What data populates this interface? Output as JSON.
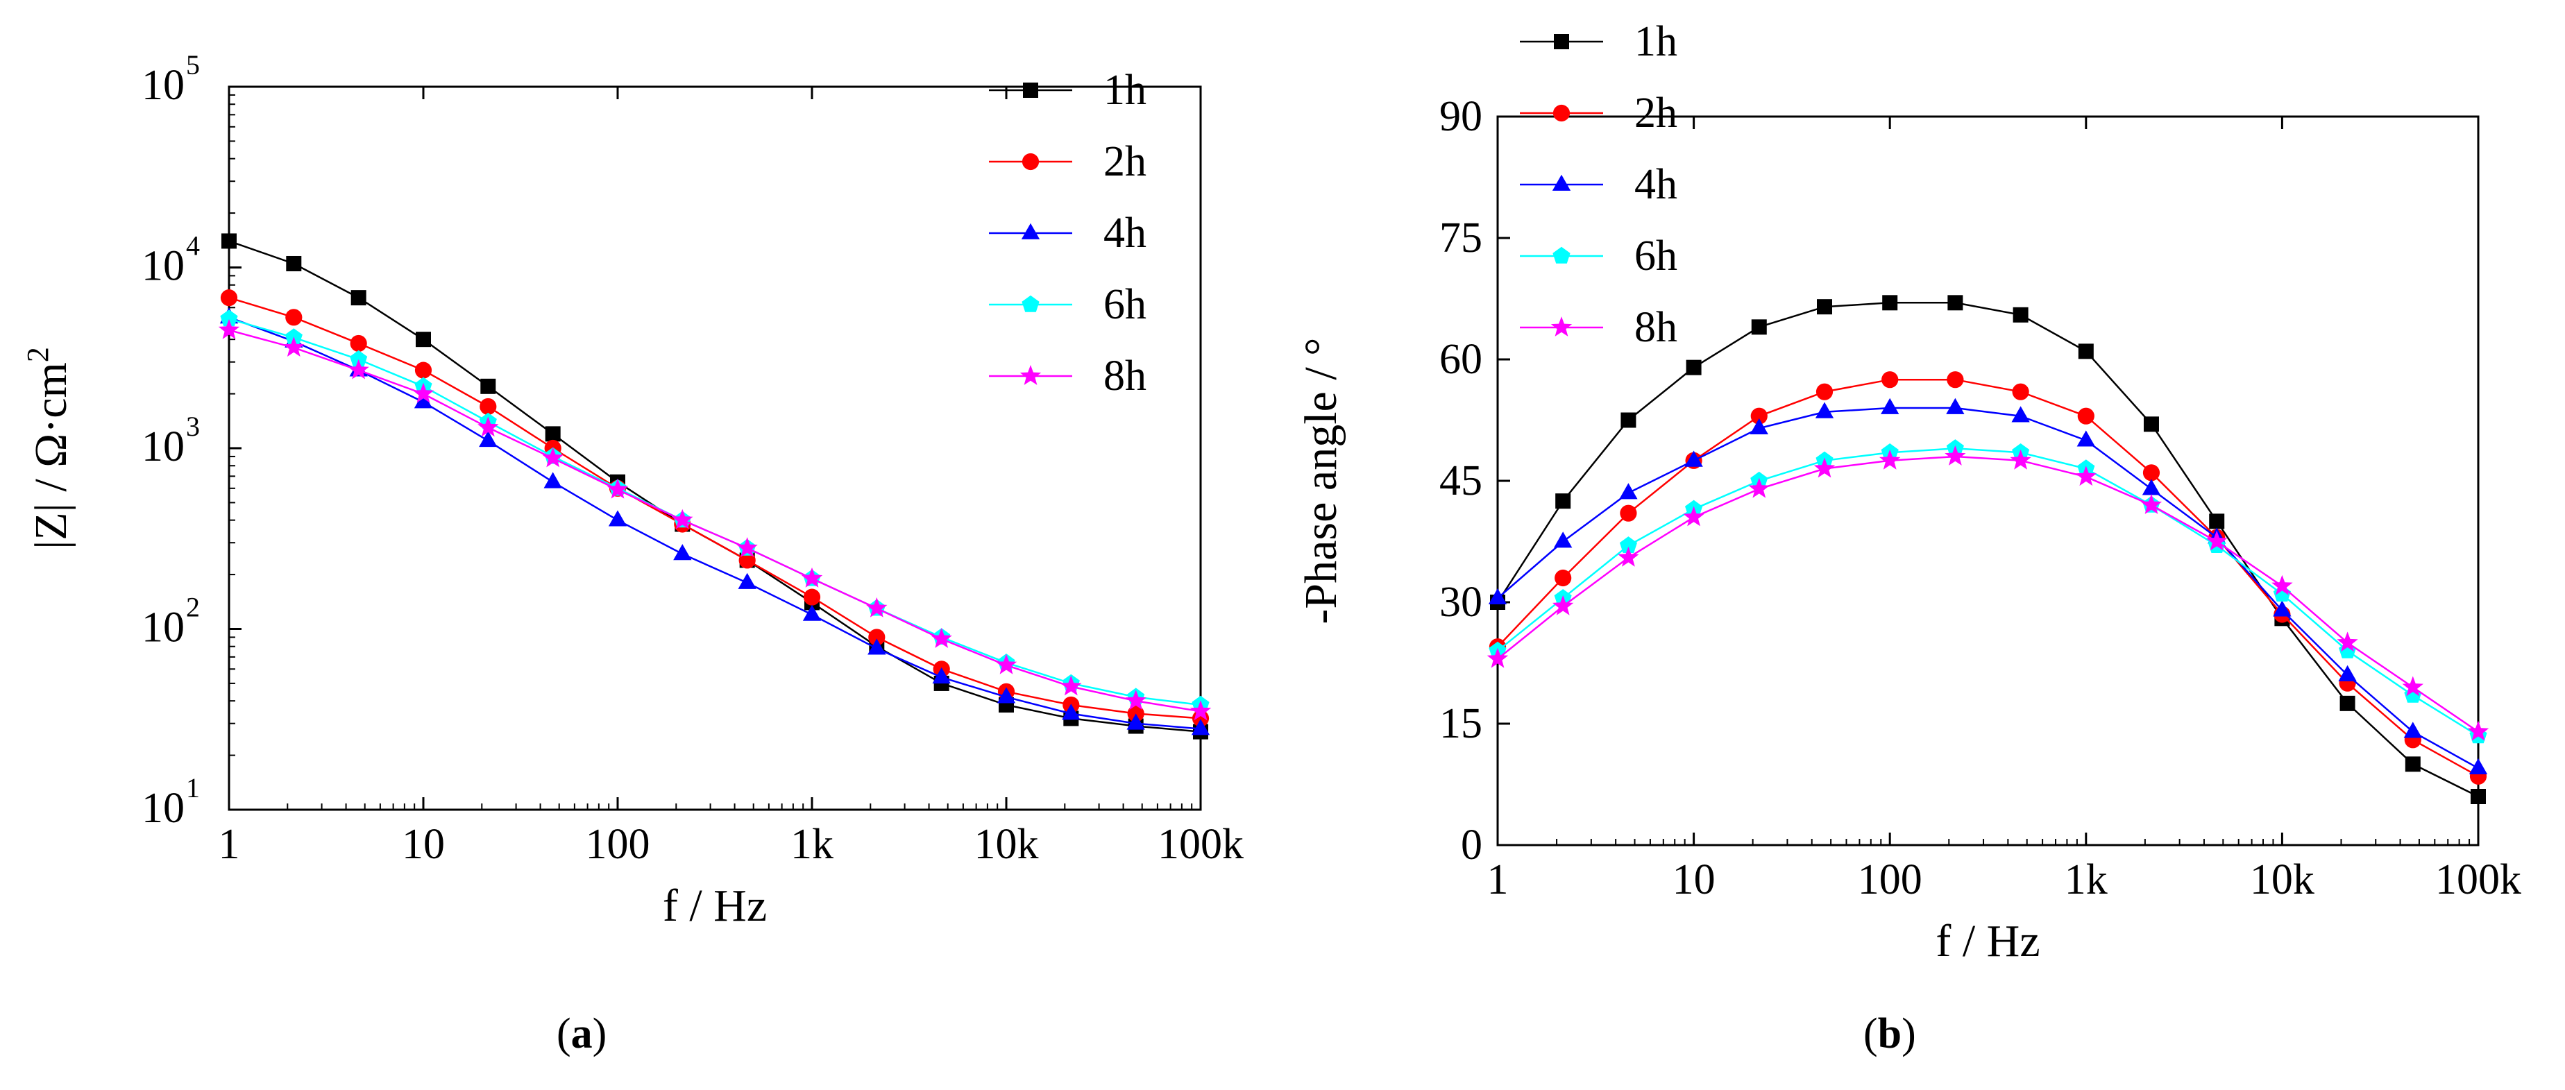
{
  "captions": {
    "a": "a",
    "b": "b"
  },
  "series_style": [
    {
      "name": "1h",
      "color": "#000000",
      "marker": "square"
    },
    {
      "name": "2h",
      "color": "#ff0000",
      "marker": "circle"
    },
    {
      "name": "4h",
      "color": "#0000ff",
      "marker": "triangle"
    },
    {
      "name": "6h",
      "color": "#00ffff",
      "marker": "pentagon"
    },
    {
      "name": "8h",
      "color": "#ff00ff",
      "marker": "star"
    }
  ],
  "chart_data": [
    {
      "type": "line",
      "panel": "a",
      "xlabel": "f / Hz",
      "ylabel_parts": [
        "|Z| / Ω·cm",
        "2"
      ],
      "x_scale": "log",
      "y_scale": "log",
      "xlim": [
        1,
        100000
      ],
      "ylim": [
        10,
        100000
      ],
      "x_ticks": [
        1,
        10,
        100,
        1000,
        10000,
        100000
      ],
      "x_tick_labels": [
        "1",
        "10",
        "100",
        "1k",
        "10k",
        "100k"
      ],
      "y_ticks": [
        10,
        100,
        1000,
        10000,
        100000
      ],
      "y_tick_labels": [
        [
          "10",
          "1"
        ],
        [
          "10",
          "2"
        ],
        [
          "10",
          "3"
        ],
        [
          "10",
          "4"
        ],
        [
          "10",
          "5"
        ]
      ],
      "legend_position": "top-right",
      "x": [
        1,
        2.154,
        4.642,
        10,
        21.54,
        46.42,
        100,
        215.4,
        464.2,
        1000,
        2154,
        4642,
        10000,
        21540,
        46420,
        100000
      ],
      "series": [
        {
          "name": "1h",
          "values": [
            14000,
            10500,
            6800,
            4000,
            2200,
            1200,
            650,
            380,
            240,
            140,
            80,
            50,
            38,
            32,
            29,
            27
          ]
        },
        {
          "name": "2h",
          "values": [
            6800,
            5300,
            3800,
            2700,
            1700,
            1000,
            600,
            380,
            240,
            150,
            90,
            60,
            45,
            38,
            34,
            32
          ]
        },
        {
          "name": "4h",
          "values": [
            5300,
            3900,
            2700,
            1800,
            1100,
            650,
            400,
            260,
            180,
            120,
            78,
            54,
            42,
            34,
            30,
            28
          ]
        },
        {
          "name": "6h",
          "values": [
            5200,
            4100,
            3100,
            2200,
            1400,
            900,
            600,
            400,
            280,
            190,
            130,
            90,
            65,
            50,
            42,
            38
          ]
        },
        {
          "name": "8h",
          "values": [
            4500,
            3600,
            2700,
            2000,
            1300,
            880,
            590,
            400,
            280,
            190,
            130,
            88,
            63,
            48,
            40,
            35
          ]
        }
      ]
    },
    {
      "type": "line",
      "panel": "b",
      "xlabel": "f / Hz",
      "ylabel": "-Phase angle / °",
      "x_scale": "log",
      "y_scale": "linear",
      "xlim": [
        1,
        100000
      ],
      "ylim": [
        0,
        90
      ],
      "x_ticks": [
        1,
        10,
        100,
        1000,
        10000,
        100000
      ],
      "x_tick_labels": [
        "1",
        "10",
        "100",
        "1k",
        "10k",
        "100k"
      ],
      "y_ticks": [
        0,
        15,
        30,
        45,
        60,
        75,
        90
      ],
      "y_tick_labels": [
        "0",
        "15",
        "30",
        "45",
        "60",
        "75",
        "90"
      ],
      "legend_position": "top-left",
      "x": [
        1,
        2.154,
        4.642,
        10,
        21.54,
        46.42,
        100,
        215.4,
        464.2,
        1000,
        2154,
        4642,
        10000,
        21540,
        46420,
        100000
      ],
      "series": [
        {
          "name": "1h",
          "values": [
            30,
            42.5,
            52.5,
            59,
            64,
            66.5,
            67,
            67,
            65.5,
            61,
            52,
            40,
            28,
            17.5,
            10,
            6
          ]
        },
        {
          "name": "2h",
          "values": [
            24.5,
            33,
            41,
            47.5,
            53,
            56,
            57.5,
            57.5,
            56,
            53,
            46,
            38,
            28.5,
            20,
            13,
            8.5
          ]
        },
        {
          "name": "4h",
          "values": [
            30.5,
            37.5,
            43.5,
            47.5,
            51.5,
            53.5,
            54,
            54,
            53,
            50,
            44,
            38,
            29,
            21,
            14,
            9.5
          ]
        },
        {
          "name": "6h",
          "values": [
            24,
            30.5,
            37,
            41.5,
            45,
            47.5,
            48.5,
            49,
            48.5,
            46.5,
            42,
            37,
            31,
            24,
            18.5,
            13.5
          ]
        },
        {
          "name": "8h",
          "values": [
            23,
            29.5,
            35.5,
            40.5,
            44,
            46.5,
            47.5,
            48,
            47.5,
            45.5,
            42,
            37.5,
            32,
            25,
            19.5,
            14
          ]
        }
      ]
    }
  ]
}
